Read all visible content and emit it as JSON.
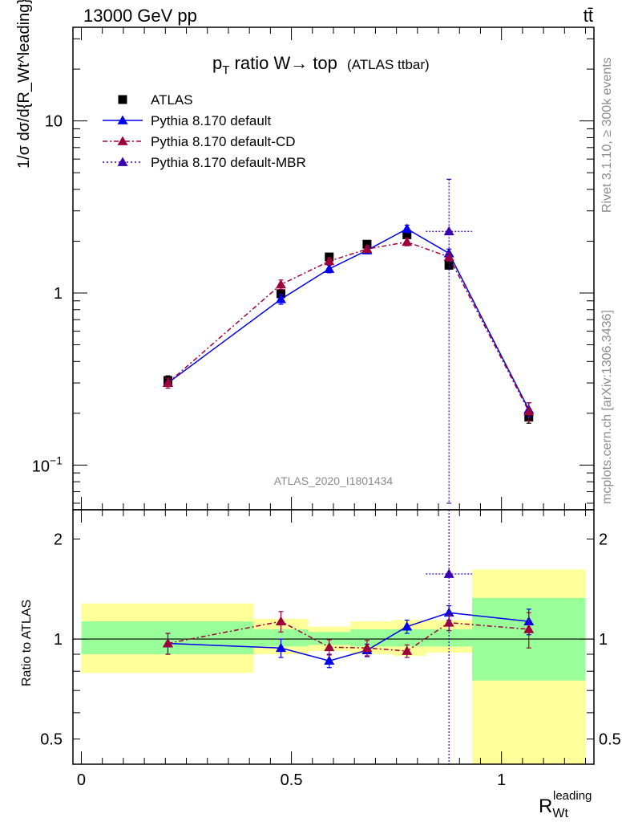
{
  "header": {
    "energy_label": "13000 GeV pp",
    "process_label": "tt̄"
  },
  "side_labels": {
    "rivet": "Rivet 3.1.10, ≥ 300k events",
    "mcplots": "mcplots.cern.ch [arXiv:1306.3436]"
  },
  "analysis_id": "ATLAS_2020_I1801434",
  "chart_data": [
    {
      "type": "line",
      "title_main": "p",
      "title_sub": "T",
      "title_rest": " ratio W→ top",
      "title_note": "(ATLAS ttbar)",
      "xlabel": "R",
      "xlabel_sub": "Wt",
      "xlabel_sup": "leading",
      "ylabel": "1/σ dσ/d{R_Wt^leading}",
      "yscale": "log",
      "ylim": [
        0.055,
        35
      ],
      "xlim": [
        -0.02,
        1.22
      ],
      "y_ticks": [
        {
          "value": 0.1,
          "base": "10",
          "exp": "−1"
        },
        {
          "value": 1,
          "label": "1"
        },
        {
          "value": 10,
          "label": "10"
        }
      ],
      "legend": [
        {
          "label": "ATLAS",
          "color": "#000000",
          "marker": "square",
          "dash": "none"
        },
        {
          "label": "Pythia 8.170 default",
          "color": "#0000ee",
          "marker": "triangle",
          "dash": "solid"
        },
        {
          "label": "Pythia 8.170 default-CD",
          "color": "#a0003a",
          "marker": "triangle",
          "dash": "dashdot"
        },
        {
          "label": "Pythia 8.170 default-MBR",
          "color": "#3a00b0",
          "marker": "triangle",
          "dash": "dotted"
        }
      ],
      "series": [
        {
          "name": "ATLAS",
          "points": [
            {
              "x": 0.206,
              "y": 0.31,
              "elo": 0.02,
              "ehi": 0.02
            },
            {
              "x": 0.475,
              "y": 0.99,
              "elo": 0.05,
              "ehi": 0.05
            },
            {
              "x": 0.59,
              "y": 1.62,
              "elo": 0.07,
              "ehi": 0.07
            },
            {
              "x": 0.68,
              "y": 1.92,
              "elo": 0.08,
              "ehi": 0.08
            },
            {
              "x": 0.775,
              "y": 2.18,
              "elo": 0.09,
              "ehi": 0.09
            },
            {
              "x": 0.875,
              "y": 1.45,
              "elo": 0.07,
              "ehi": 0.07
            },
            {
              "x": 1.065,
              "y": 0.19,
              "elo": 0.015,
              "ehi": 0.015
            }
          ]
        },
        {
          "name": "Pythia 8.170 default",
          "points": [
            {
              "x": 0.206,
              "y": 0.3,
              "elo": 0.02,
              "ehi": 0.02
            },
            {
              "x": 0.475,
              "y": 0.92,
              "elo": 0.06,
              "ehi": 0.06
            },
            {
              "x": 0.59,
              "y": 1.38,
              "elo": 0.07,
              "ehi": 0.07
            },
            {
              "x": 0.68,
              "y": 1.77,
              "elo": 0.08,
              "ehi": 0.08
            },
            {
              "x": 0.775,
              "y": 2.36,
              "elo": 0.12,
              "ehi": 0.12
            },
            {
              "x": 0.875,
              "y": 1.7,
              "elo": 0.1,
              "ehi": 0.1
            },
            {
              "x": 1.065,
              "y": 0.21,
              "elo": 0.02,
              "ehi": 0.02
            }
          ]
        },
        {
          "name": "Pythia 8.170 default-CD",
          "points": [
            {
              "x": 0.206,
              "y": 0.3,
              "elo": 0.02,
              "ehi": 0.02
            },
            {
              "x": 0.475,
              "y": 1.12,
              "elo": 0.07,
              "ehi": 0.07
            },
            {
              "x": 0.59,
              "y": 1.53,
              "elo": 0.07,
              "ehi": 0.07
            },
            {
              "x": 0.68,
              "y": 1.8,
              "elo": 0.08,
              "ehi": 0.08
            },
            {
              "x": 0.775,
              "y": 1.98,
              "elo": 0.1,
              "ehi": 0.1
            },
            {
              "x": 0.875,
              "y": 1.62,
              "elo": 0.09,
              "ehi": 0.09
            },
            {
              "x": 1.065,
              "y": 0.205,
              "elo": 0.025,
              "ehi": 0.025
            }
          ]
        },
        {
          "name": "Pythia 8.170 default-MBR",
          "points": [
            {
              "x": 0.875,
              "y": 2.28,
              "elo": 2.22,
              "ehi": 2.3,
              "xlo": 0.82,
              "xhi": 0.93
            }
          ]
        }
      ]
    },
    {
      "type": "line",
      "ylabel": "Ratio to ATLAS",
      "yscale": "log",
      "ylim": [
        0.42,
        2.45
      ],
      "xlim": [
        -0.02,
        1.22
      ],
      "y_ticks": [
        {
          "value": 0.5,
          "label": "0.5"
        },
        {
          "value": 1,
          "label": "1"
        },
        {
          "value": 2,
          "label": "2"
        }
      ],
      "x_ticks": [
        {
          "value": 0,
          "label": "0"
        },
        {
          "value": 0.5,
          "label": "0.5"
        },
        {
          "value": 1,
          "label": "1"
        }
      ],
      "bands": [
        {
          "xlo": 0.0,
          "xhi": 0.41,
          "y_lo": 0.79,
          "y_hi": 1.28,
          "g_lo": 0.9,
          "g_hi": 1.13
        },
        {
          "xlo": 0.41,
          "xhi": 0.54,
          "y_lo": 0.9,
          "y_hi": 1.15,
          "g_lo": 0.95,
          "g_hi": 1.07
        },
        {
          "xlo": 0.54,
          "xhi": 0.64,
          "y_lo": 0.92,
          "y_hi": 1.09,
          "g_lo": 0.96,
          "g_hi": 1.05
        },
        {
          "xlo": 0.64,
          "xhi": 0.74,
          "y_lo": 0.9,
          "y_hi": 1.13,
          "g_lo": 0.95,
          "g_hi": 1.07
        },
        {
          "xlo": 0.74,
          "xhi": 0.82,
          "y_lo": 0.89,
          "y_hi": 1.14,
          "g_lo": 0.95,
          "g_hi": 1.07
        },
        {
          "xlo": 0.82,
          "xhi": 0.93,
          "y_lo": 0.91,
          "y_hi": 1.14,
          "g_lo": 0.95,
          "g_hi": 1.07
        },
        {
          "xlo": 0.93,
          "xhi": 1.2,
          "y_lo": 0.4,
          "y_hi": 1.62,
          "g_lo": 0.75,
          "g_hi": 1.33
        }
      ],
      "series": [
        {
          "name": "Pythia 8.170 default",
          "points": [
            {
              "x": 0.206,
              "y": 0.97,
              "elo": 0.07,
              "ehi": 0.07
            },
            {
              "x": 0.475,
              "y": 0.94,
              "elo": 0.06,
              "ehi": 0.06
            },
            {
              "x": 0.59,
              "y": 0.86,
              "elo": 0.04,
              "ehi": 0.04
            },
            {
              "x": 0.68,
              "y": 0.925,
              "elo": 0.04,
              "ehi": 0.04
            },
            {
              "x": 0.775,
              "y": 1.09,
              "elo": 0.05,
              "ehi": 0.05
            },
            {
              "x": 0.875,
              "y": 1.2,
              "elo": 0.06,
              "ehi": 0.06
            },
            {
              "x": 1.065,
              "y": 1.13,
              "elo": 0.1,
              "ehi": 0.1
            }
          ]
        },
        {
          "name": "Pythia 8.170 default-CD",
          "points": [
            {
              "x": 0.206,
              "y": 0.97,
              "elo": 0.07,
              "ehi": 0.07
            },
            {
              "x": 0.475,
              "y": 1.13,
              "elo": 0.08,
              "ehi": 0.08
            },
            {
              "x": 0.59,
              "y": 0.945,
              "elo": 0.05,
              "ehi": 0.05
            },
            {
              "x": 0.68,
              "y": 0.94,
              "elo": 0.05,
              "ehi": 0.05
            },
            {
              "x": 0.775,
              "y": 0.92,
              "elo": 0.04,
              "ehi": 0.04
            },
            {
              "x": 0.875,
              "y": 1.12,
              "elo": 0.06,
              "ehi": 0.06
            },
            {
              "x": 1.065,
              "y": 1.07,
              "elo": 0.13,
              "ehi": 0.13
            }
          ]
        },
        {
          "name": "Pythia 8.170 default-MBR",
          "points": [
            {
              "x": 0.875,
              "y": 1.57,
              "elo": 1.5,
              "ehi": 1.6,
              "xlo": 0.82,
              "xhi": 0.93
            }
          ]
        }
      ]
    }
  ]
}
